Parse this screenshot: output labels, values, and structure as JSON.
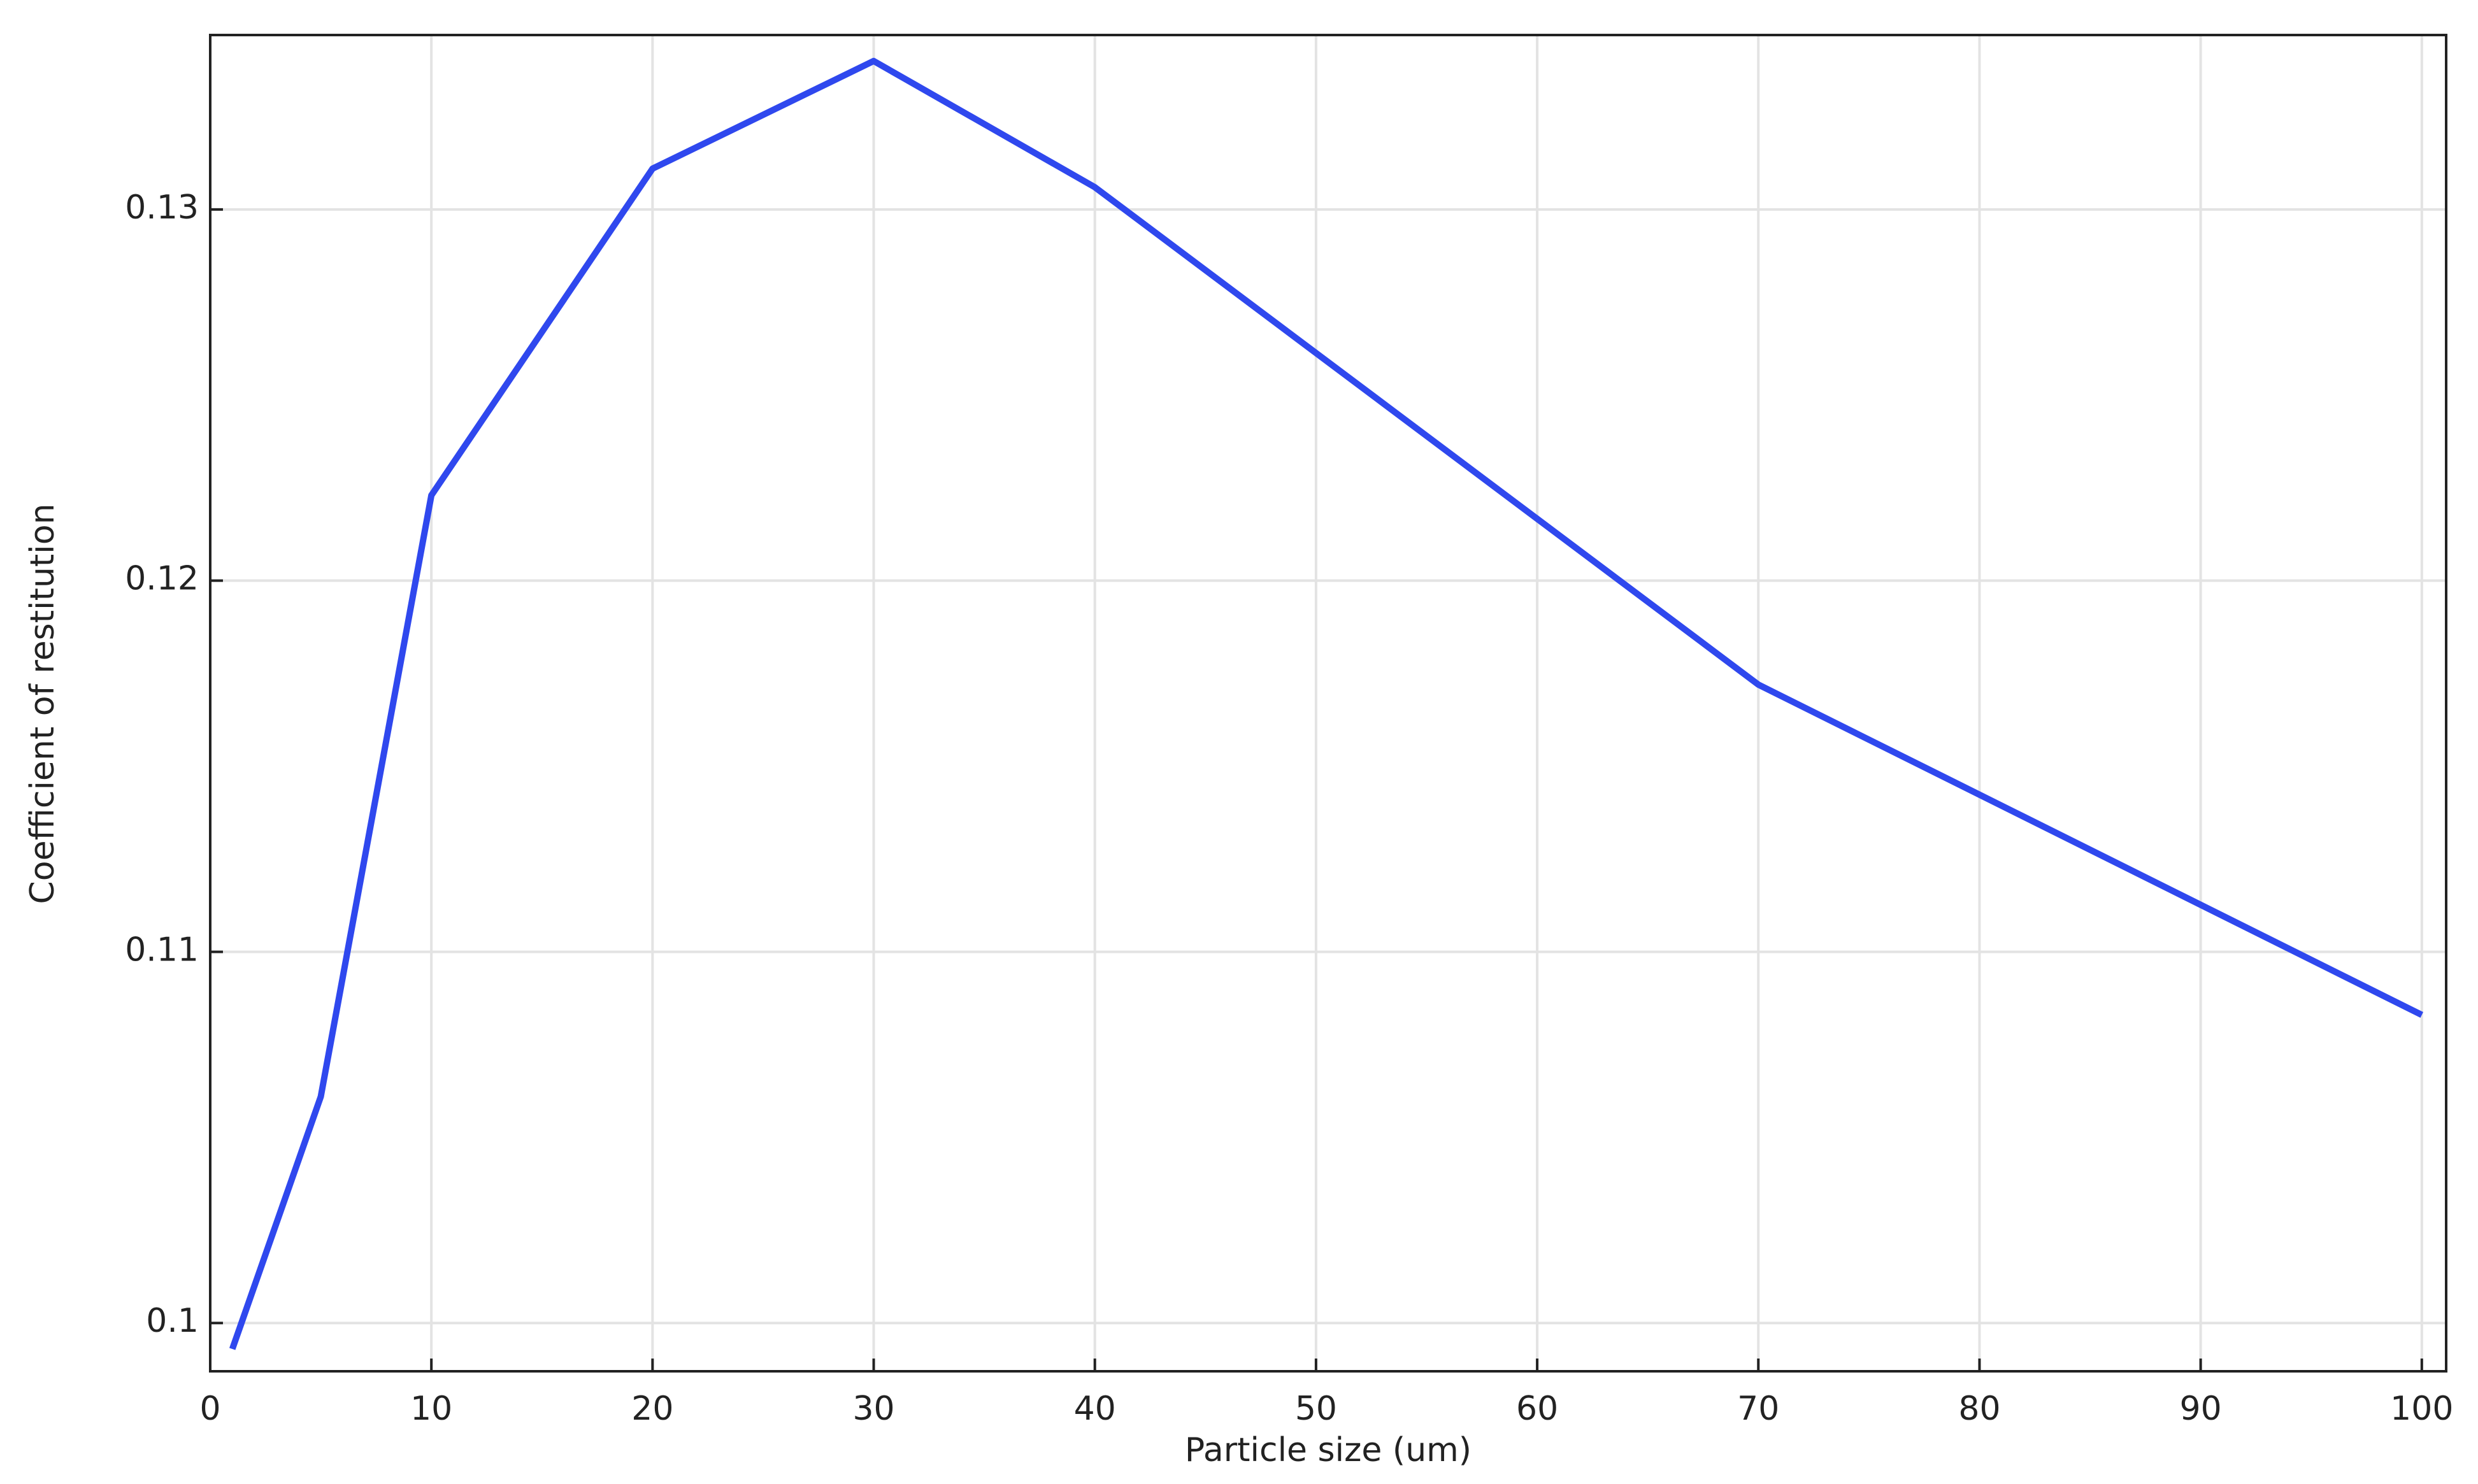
{
  "chart_data": {
    "type": "line",
    "x_label": "Particle size (um)",
    "y_label": "Coefficient of restitution",
    "x": [
      1,
      5,
      10,
      20,
      30,
      40,
      70,
      100
    ],
    "series": [
      {
        "color": "#2f48ee",
        "values": [
          0.0993,
          0.1061,
          0.1223,
          0.1311,
          0.134,
          0.1306,
          0.1172,
          0.1083
        ]
      }
    ],
    "xlim": [
      0,
      101.1
    ],
    "xticks": [
      0,
      10,
      20,
      30,
      40,
      50,
      60,
      70,
      80,
      90,
      100
    ],
    "ylim": [
      0.0987,
      0.1347
    ],
    "yticks": [
      0.1,
      0.11,
      0.12,
      0.13
    ],
    "grid": true
  }
}
